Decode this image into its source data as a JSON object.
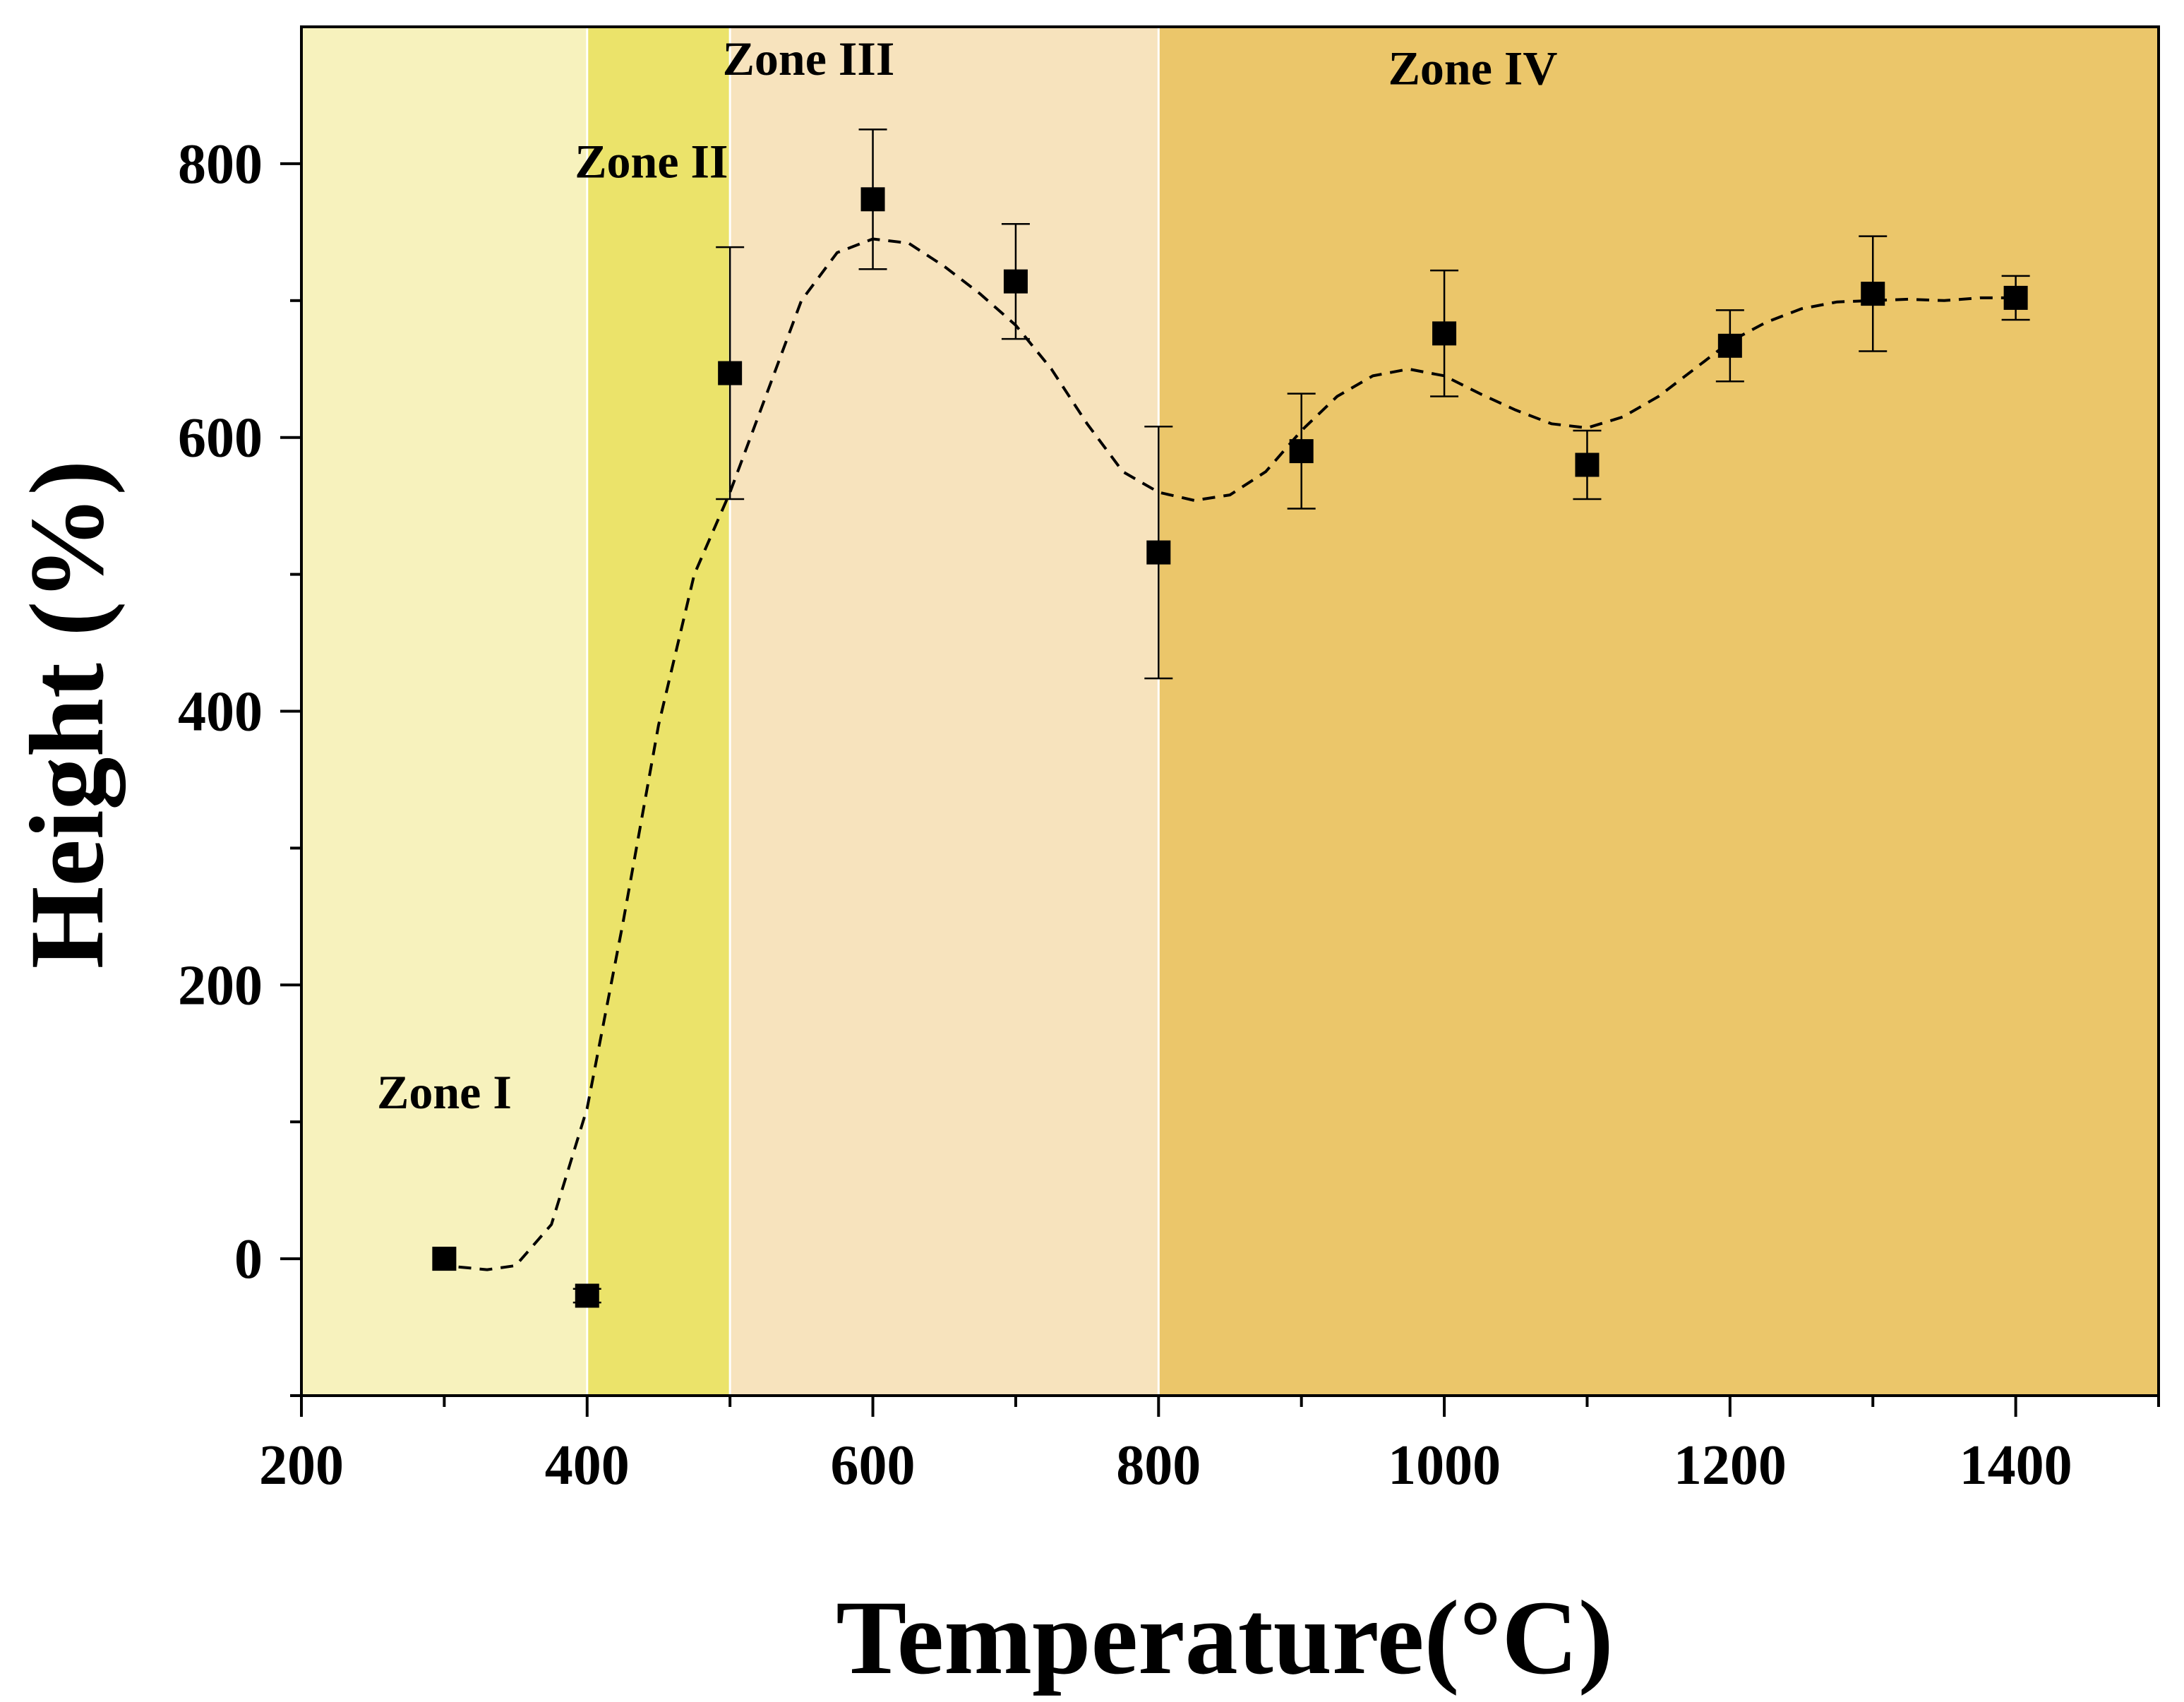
{
  "chart_data": {
    "type": "scatter",
    "title": "",
    "xlabel": "Temperature(°C)",
    "ylabel": "Height (%)",
    "xlim": [
      200,
      1500
    ],
    "ylim": [
      -100,
      900
    ],
    "xticks": [
      200,
      400,
      600,
      800,
      1000,
      1200,
      1400
    ],
    "xtick_labels": [
      "200",
      "400",
      "600",
      "800",
      "1000",
      "1200",
      "1400"
    ],
    "yticks": [
      0,
      200,
      400,
      600,
      800
    ],
    "ytick_labels": [
      "0",
      "200",
      "400",
      "600",
      "800"
    ],
    "y_minor_ticks": [
      -100,
      100,
      300,
      500,
      700
    ],
    "x_minor_ticks": [
      300,
      500,
      700,
      900,
      1100,
      1300,
      1500
    ],
    "grid": false,
    "zones": [
      {
        "name": "Zone I",
        "x_start": 200,
        "x_end": 400,
        "color": "#F7F2BD",
        "label_x": 300,
        "label_y": 110
      },
      {
        "name": "Zone II",
        "x_start": 400,
        "x_end": 500,
        "color": "#EBE36A",
        "label_x": 445,
        "label_y": 790
      },
      {
        "name": "Zone III",
        "x_start": 500,
        "x_end": 800,
        "color": "#F7E3BD",
        "label_x": 555,
        "label_y": 865
      },
      {
        "name": "Zone IV",
        "x_start": 800,
        "x_end": 1500,
        "color": "#EBC66A",
        "label_x": 1020,
        "label_y": 858
      }
    ],
    "series": [
      {
        "name": "Height",
        "x": [
          300,
          400,
          500,
          600,
          700,
          800,
          900,
          1000,
          1100,
          1200,
          1300,
          1400
        ],
        "y": [
          0,
          -27,
          647,
          774,
          714,
          516,
          590,
          676,
          580,
          667,
          705,
          702
        ],
        "err": [
          0,
          5,
          92,
          51,
          42,
          92,
          42,
          46,
          25,
          26,
          42,
          16
        ],
        "marker": "square",
        "color": "#000000"
      }
    ],
    "fit_curve": {
      "style": "dashed",
      "color": "#000000",
      "x": [
        310,
        330,
        350,
        375,
        400,
        425,
        450,
        475,
        500,
        525,
        550,
        575,
        600,
        625,
        650,
        675,
        700,
        725,
        750,
        775,
        800,
        825,
        850,
        875,
        900,
        925,
        950,
        975,
        1000,
        1025,
        1050,
        1075,
        1100,
        1125,
        1150,
        1175,
        1200,
        1225,
        1250,
        1275,
        1300,
        1325,
        1350,
        1375,
        1400
      ],
      "y": [
        -6,
        -8,
        -5,
        25,
        110,
        245,
        390,
        500,
        560,
        630,
        700,
        735,
        745,
        742,
        725,
        705,
        682,
        650,
        610,
        575,
        560,
        554,
        558,
        575,
        605,
        630,
        645,
        650,
        645,
        632,
        620,
        610,
        607,
        615,
        630,
        650,
        670,
        684,
        694,
        699,
        700,
        701,
        700,
        702,
        702
      ]
    }
  }
}
